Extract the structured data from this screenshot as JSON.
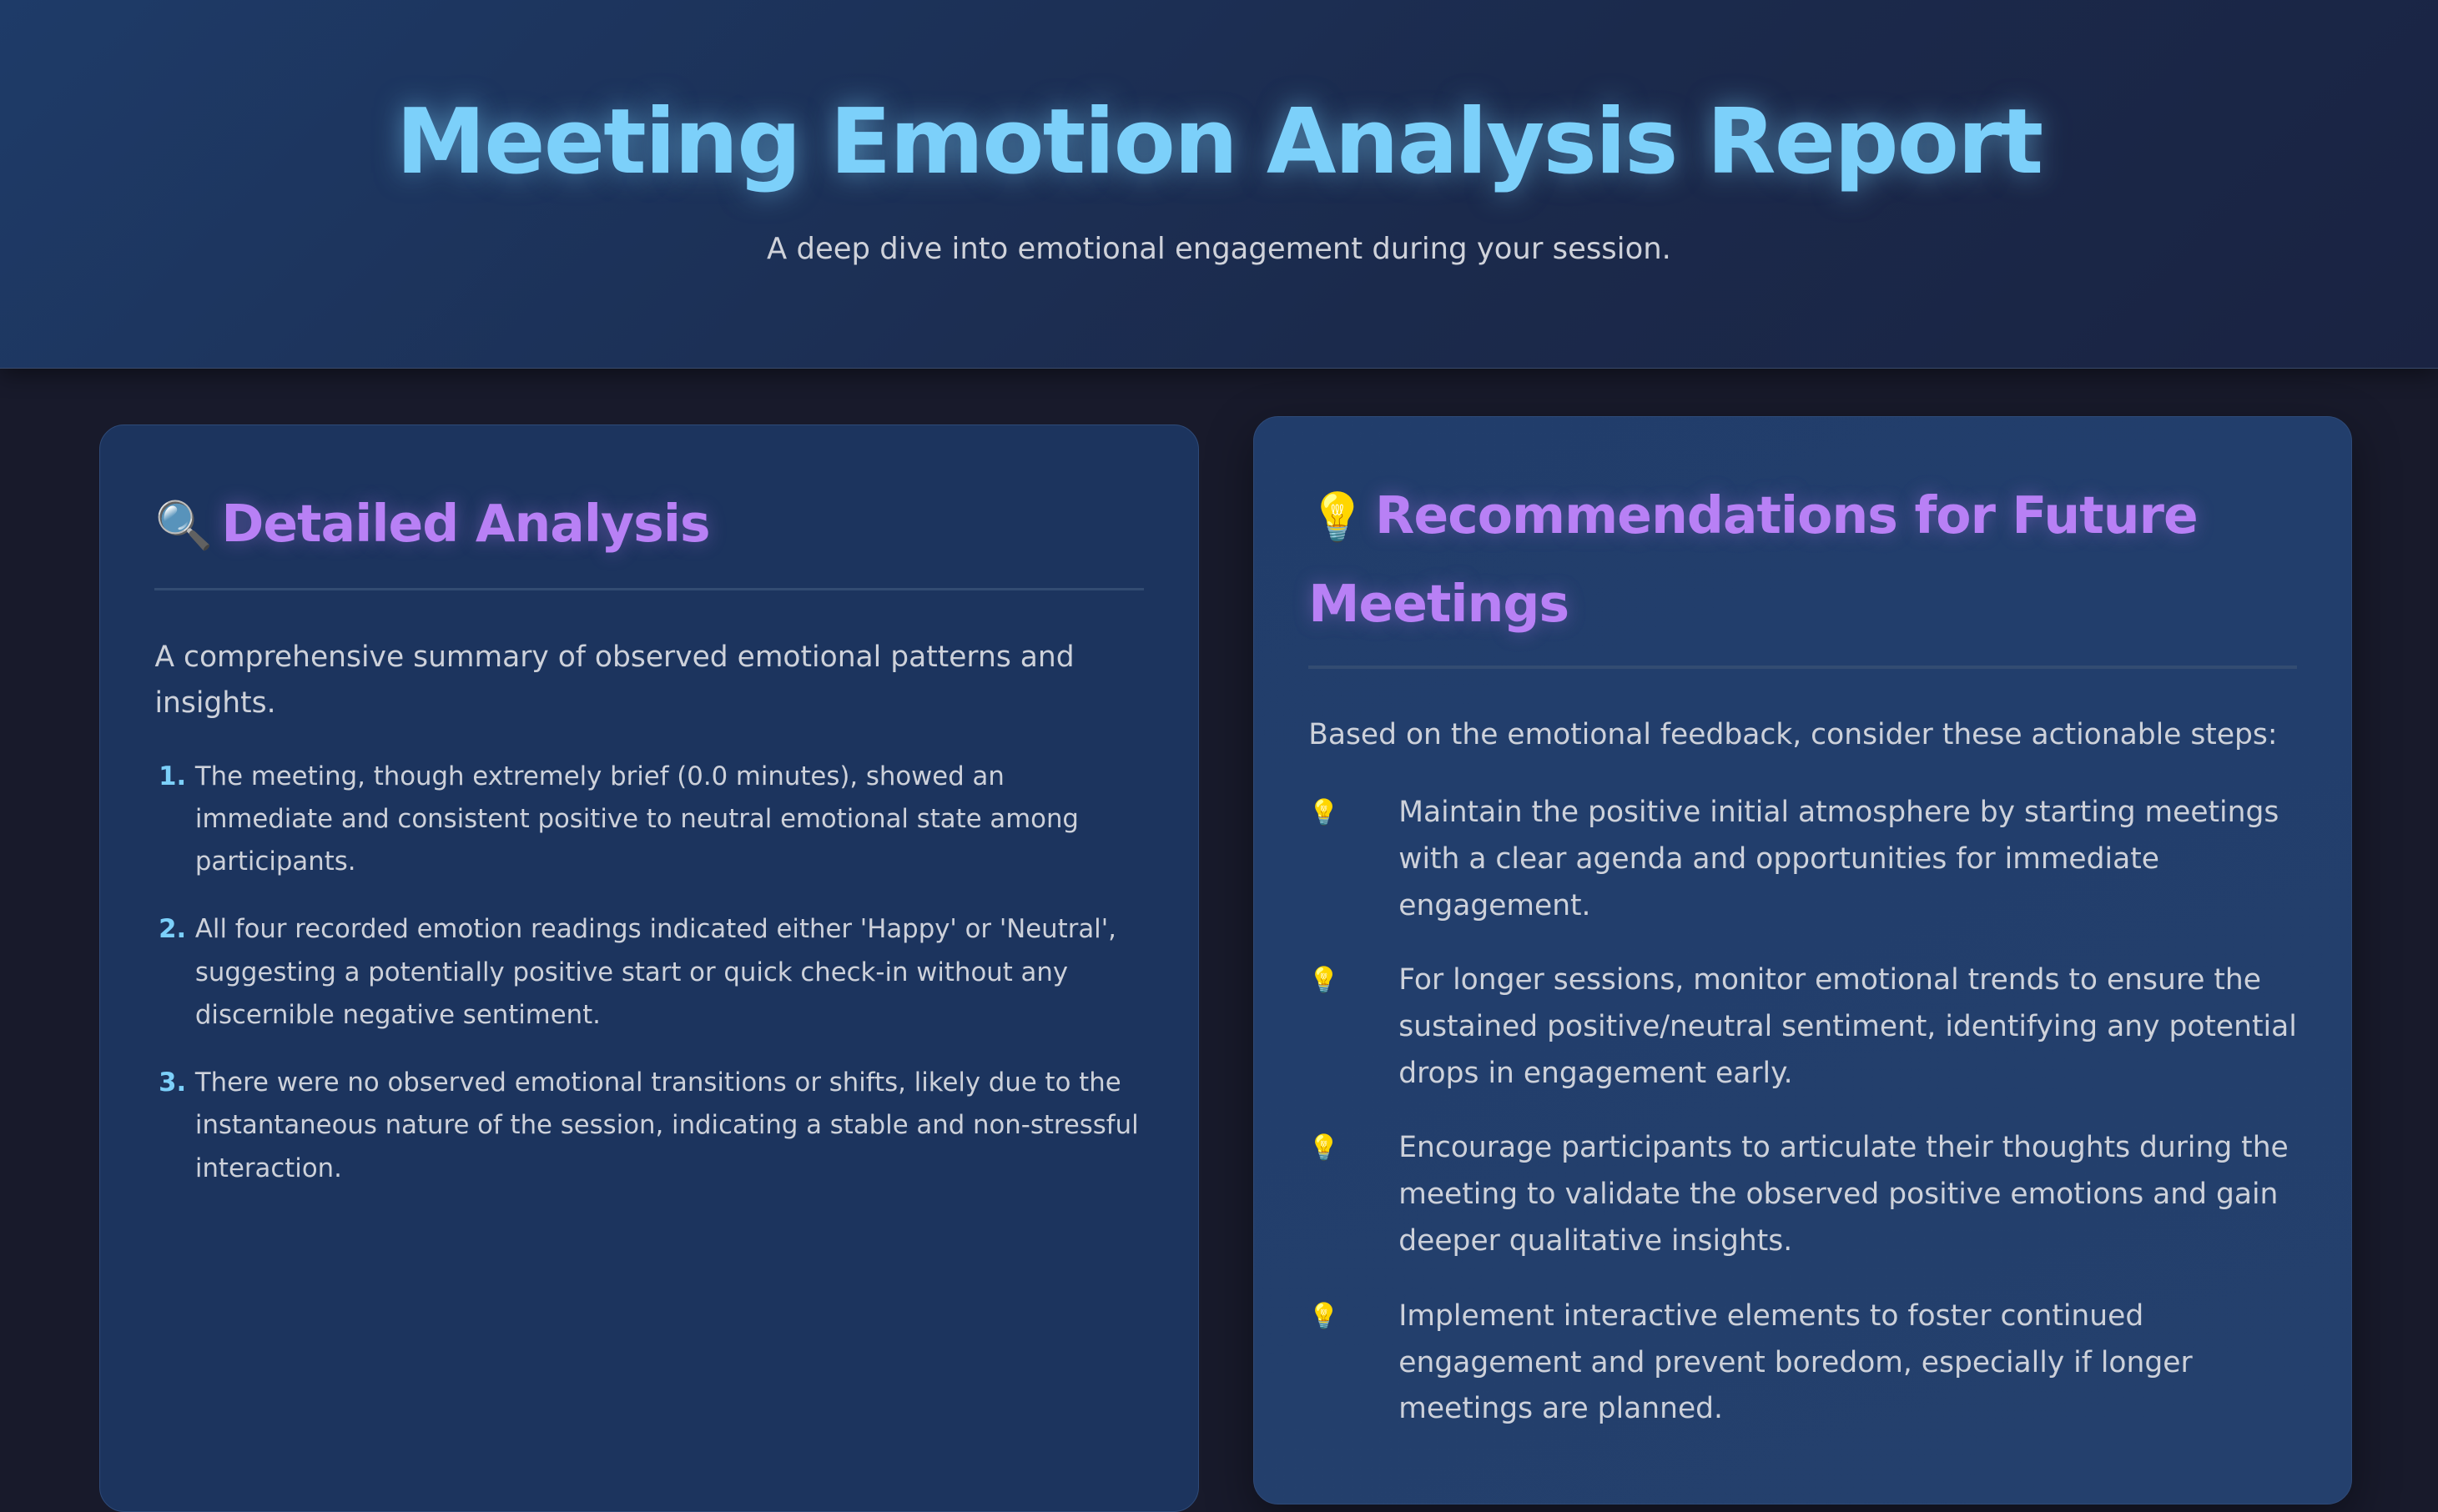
{
  "header": {
    "title": "Meeting Emotion Analysis Report",
    "subtitle": "A deep dive into emotional engagement during your session."
  },
  "analysis": {
    "icon": "🔍",
    "title": "Detailed Analysis",
    "intro": "A comprehensive summary of observed emotional patterns and insights.",
    "items": [
      "The meeting, though extremely brief (0.0 minutes), showed an immediate and consistent positive to neutral emotional state among participants.",
      "All four recorded emotion readings indicated either 'Happy' or 'Neutral', suggesting a potentially positive start or quick check-in without any discernible negative sentiment.",
      "There were no observed emotional transitions or shifts, likely due to the instantaneous nature of the session, indicating a stable and non-stressful interaction."
    ]
  },
  "recommendations": {
    "icon": "💡",
    "title": "Recommendations for Future Meetings",
    "intro": "Based on the emotional feedback, consider these actionable steps:",
    "bullet_icon": "💡",
    "items": [
      "Maintain the positive initial atmosphere by starting meetings with a clear agenda and opportunities for immediate engagement.",
      "For longer sessions, monitor emotional trends to ensure the sustained positive/neutral sentiment, identifying any potential drops in engagement early.",
      "Encourage participants to articulate their thoughts during the meeting to validate the observed positive emotions and gain deeper qualitative insights.",
      "Implement interactive elements to foster continued engagement and prevent boredom, especially if longer meetings are planned."
    ]
  }
}
